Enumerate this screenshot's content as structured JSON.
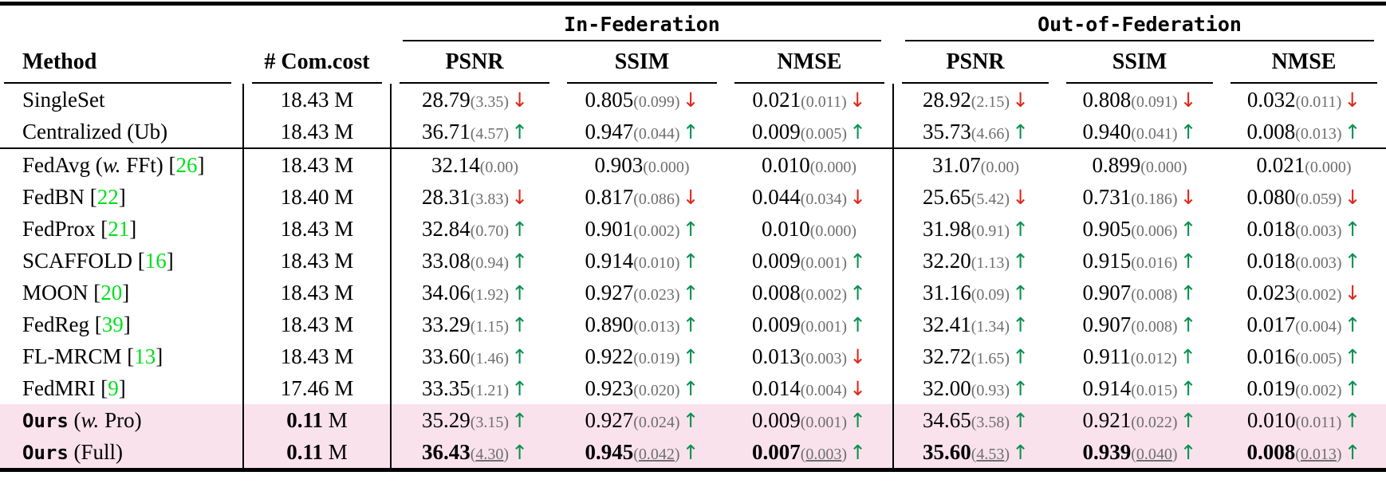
{
  "colors": {
    "highlight_row_pink": "#f9e2ec",
    "arrow_up_green": "#0a9150",
    "arrow_down_red": "#e0271b",
    "citation_green": "#00e01c",
    "std_gray": "#6e6e6e"
  },
  "header": {
    "groups": [
      {
        "label": "In-Federation"
      },
      {
        "label": "Out-of-Federation"
      }
    ],
    "columns": {
      "method": "Method",
      "comcost": "# Com.cost",
      "metrics": [
        "PSNR",
        "SSIM",
        "NMSE"
      ]
    }
  },
  "rows": [
    {
      "method_segments": [
        {
          "t": "SingleSet",
          "s": "n"
        }
      ],
      "comcost": {
        "value": "18.43",
        "unit": "M",
        "bold": false
      },
      "metrics": [
        {
          "v": "28.79",
          "sd": "3.35",
          "arrow": "down"
        },
        {
          "v": "0.805",
          "sd": "0.099",
          "arrow": "down"
        },
        {
          "v": "0.021",
          "sd": "0.011",
          "arrow": "down"
        },
        {
          "v": "28.92",
          "sd": "2.15",
          "arrow": "down"
        },
        {
          "v": "0.808",
          "sd": "0.091",
          "arrow": "down"
        },
        {
          "v": "0.032",
          "sd": "0.011",
          "arrow": "down"
        }
      ],
      "highlight": false,
      "emphasis": false,
      "separator_after": false
    },
    {
      "method_segments": [
        {
          "t": "Centralized (Ub)",
          "s": "n"
        }
      ],
      "comcost": {
        "value": "18.43",
        "unit": "M",
        "bold": false
      },
      "metrics": [
        {
          "v": "36.71",
          "sd": "4.57",
          "arrow": "up"
        },
        {
          "v": "0.947",
          "sd": "0.044",
          "arrow": "up"
        },
        {
          "v": "0.009",
          "sd": "0.005",
          "arrow": "up"
        },
        {
          "v": "35.73",
          "sd": "4.66",
          "arrow": "up"
        },
        {
          "v": "0.940",
          "sd": "0.041",
          "arrow": "up"
        },
        {
          "v": "0.008",
          "sd": "0.013",
          "arrow": "up"
        }
      ],
      "highlight": false,
      "emphasis": false,
      "separator_after": true
    },
    {
      "method_segments": [
        {
          "t": "FedAvg (",
          "s": "n"
        },
        {
          "t": "w.",
          "s": "i"
        },
        {
          "t": " FFt) [",
          "s": "n"
        },
        {
          "t": "26",
          "s": "c"
        },
        {
          "t": "]",
          "s": "n"
        }
      ],
      "comcost": {
        "value": "18.43",
        "unit": "M",
        "bold": false
      },
      "metrics": [
        {
          "v": "32.14",
          "sd": "0.00",
          "arrow": "none"
        },
        {
          "v": "0.903",
          "sd": "0.000",
          "arrow": "none"
        },
        {
          "v": "0.010",
          "sd": "0.000",
          "arrow": "none"
        },
        {
          "v": "31.07",
          "sd": "0.00",
          "arrow": "none"
        },
        {
          "v": "0.899",
          "sd": "0.000",
          "arrow": "none"
        },
        {
          "v": "0.021",
          "sd": "0.000",
          "arrow": "none"
        }
      ],
      "highlight": false,
      "emphasis": false,
      "separator_after": false
    },
    {
      "method_segments": [
        {
          "t": "FedBN [",
          "s": "n"
        },
        {
          "t": "22",
          "s": "c"
        },
        {
          "t": "]",
          "s": "n"
        }
      ],
      "comcost": {
        "value": "18.40",
        "unit": "M",
        "bold": false
      },
      "metrics": [
        {
          "v": "28.31",
          "sd": "3.83",
          "arrow": "down"
        },
        {
          "v": "0.817",
          "sd": "0.086",
          "arrow": "down"
        },
        {
          "v": "0.044",
          "sd": "0.034",
          "arrow": "down"
        },
        {
          "v": "25.65",
          "sd": "5.42",
          "arrow": "down"
        },
        {
          "v": "0.731",
          "sd": "0.186",
          "arrow": "down"
        },
        {
          "v": "0.080",
          "sd": "0.059",
          "arrow": "down"
        }
      ],
      "highlight": false,
      "emphasis": false,
      "separator_after": false
    },
    {
      "method_segments": [
        {
          "t": "FedProx [",
          "s": "n"
        },
        {
          "t": "21",
          "s": "c"
        },
        {
          "t": "]",
          "s": "n"
        }
      ],
      "comcost": {
        "value": "18.43",
        "unit": "M",
        "bold": false
      },
      "metrics": [
        {
          "v": "32.84",
          "sd": "0.70",
          "arrow": "up"
        },
        {
          "v": "0.901",
          "sd": "0.002",
          "arrow": "up"
        },
        {
          "v": "0.010",
          "sd": "0.000",
          "arrow": "none"
        },
        {
          "v": "31.98",
          "sd": "0.91",
          "arrow": "up"
        },
        {
          "v": "0.905",
          "sd": "0.006",
          "arrow": "up"
        },
        {
          "v": "0.018",
          "sd": "0.003",
          "arrow": "up"
        }
      ],
      "highlight": false,
      "emphasis": false,
      "separator_after": false
    },
    {
      "method_segments": [
        {
          "t": "SCAFFOLD [",
          "s": "n"
        },
        {
          "t": "16",
          "s": "c"
        },
        {
          "t": "]",
          "s": "n"
        }
      ],
      "comcost": {
        "value": "18.43",
        "unit": "M",
        "bold": false
      },
      "metrics": [
        {
          "v": "33.08",
          "sd": "0.94",
          "arrow": "up"
        },
        {
          "v": "0.914",
          "sd": "0.010",
          "arrow": "up"
        },
        {
          "v": "0.009",
          "sd": "0.001",
          "arrow": "up"
        },
        {
          "v": "32.20",
          "sd": "1.13",
          "arrow": "up"
        },
        {
          "v": "0.915",
          "sd": "0.016",
          "arrow": "up"
        },
        {
          "v": "0.018",
          "sd": "0.003",
          "arrow": "up"
        }
      ],
      "highlight": false,
      "emphasis": false,
      "separator_after": false
    },
    {
      "method_segments": [
        {
          "t": "MOON [",
          "s": "n"
        },
        {
          "t": "20",
          "s": "c"
        },
        {
          "t": "]",
          "s": "n"
        }
      ],
      "comcost": {
        "value": "18.43",
        "unit": "M",
        "bold": false
      },
      "metrics": [
        {
          "v": "34.06",
          "sd": "1.92",
          "arrow": "up"
        },
        {
          "v": "0.927",
          "sd": "0.023",
          "arrow": "up"
        },
        {
          "v": "0.008",
          "sd": "0.002",
          "arrow": "up"
        },
        {
          "v": "31.16",
          "sd": "0.09",
          "arrow": "up"
        },
        {
          "v": "0.907",
          "sd": "0.008",
          "arrow": "up"
        },
        {
          "v": "0.023",
          "sd": "0.002",
          "arrow": "down"
        }
      ],
      "highlight": false,
      "emphasis": false,
      "separator_after": false
    },
    {
      "method_segments": [
        {
          "t": "FedReg [",
          "s": "n"
        },
        {
          "t": "39",
          "s": "c"
        },
        {
          "t": "]",
          "s": "n"
        }
      ],
      "comcost": {
        "value": "18.43",
        "unit": "M",
        "bold": false
      },
      "metrics": [
        {
          "v": "33.29",
          "sd": "1.15",
          "arrow": "up"
        },
        {
          "v": "0.890",
          "sd": "0.013",
          "arrow": "up"
        },
        {
          "v": "0.009",
          "sd": "0.001",
          "arrow": "up"
        },
        {
          "v": "32.41",
          "sd": "1.34",
          "arrow": "up"
        },
        {
          "v": "0.907",
          "sd": "0.008",
          "arrow": "up"
        },
        {
          "v": "0.017",
          "sd": "0.004",
          "arrow": "up"
        }
      ],
      "highlight": false,
      "emphasis": false,
      "separator_after": false
    },
    {
      "method_segments": [
        {
          "t": "FL-MRCM [",
          "s": "n"
        },
        {
          "t": "13",
          "s": "c"
        },
        {
          "t": "]",
          "s": "n"
        }
      ],
      "comcost": {
        "value": "18.43",
        "unit": "M",
        "bold": false
      },
      "metrics": [
        {
          "v": "33.60",
          "sd": "1.46",
          "arrow": "up"
        },
        {
          "v": "0.922",
          "sd": "0.019",
          "arrow": "up"
        },
        {
          "v": "0.013",
          "sd": "0.003",
          "arrow": "down"
        },
        {
          "v": "32.72",
          "sd": "1.65",
          "arrow": "up"
        },
        {
          "v": "0.911",
          "sd": "0.012",
          "arrow": "up"
        },
        {
          "v": "0.016",
          "sd": "0.005",
          "arrow": "up"
        }
      ],
      "highlight": false,
      "emphasis": false,
      "separator_after": false
    },
    {
      "method_segments": [
        {
          "t": "FedMRI [",
          "s": "n"
        },
        {
          "t": "9",
          "s": "c"
        },
        {
          "t": "]",
          "s": "n"
        }
      ],
      "comcost": {
        "value": "17.46",
        "unit": "M",
        "bold": false
      },
      "metrics": [
        {
          "v": "33.35",
          "sd": "1.21",
          "arrow": "up"
        },
        {
          "v": "0.923",
          "sd": "0.020",
          "arrow": "up"
        },
        {
          "v": "0.014",
          "sd": "0.004",
          "arrow": "down"
        },
        {
          "v": "32.00",
          "sd": "0.93",
          "arrow": "up"
        },
        {
          "v": "0.914",
          "sd": "0.015",
          "arrow": "up"
        },
        {
          "v": "0.019",
          "sd": "0.002",
          "arrow": "up"
        }
      ],
      "highlight": false,
      "emphasis": false,
      "separator_after": false
    },
    {
      "method_segments": [
        {
          "t": "Ours",
          "s": "m"
        },
        {
          "t": " (",
          "s": "n"
        },
        {
          "t": "w.",
          "s": "i"
        },
        {
          "t": " Pro)",
          "s": "n"
        }
      ],
      "comcost": {
        "value": "0.11",
        "unit": "M",
        "bold": true
      },
      "metrics": [
        {
          "v": "35.29",
          "sd": "3.15",
          "arrow": "up"
        },
        {
          "v": "0.927",
          "sd": "0.024",
          "arrow": "up"
        },
        {
          "v": "0.009",
          "sd": "0.001",
          "arrow": "up"
        },
        {
          "v": "34.65",
          "sd": "3.58",
          "arrow": "up"
        },
        {
          "v": "0.921",
          "sd": "0.022",
          "arrow": "up"
        },
        {
          "v": "0.010",
          "sd": "0.011",
          "arrow": "up"
        }
      ],
      "highlight": true,
      "emphasis": false,
      "separator_after": false
    },
    {
      "method_segments": [
        {
          "t": "Ours",
          "s": "m"
        },
        {
          "t": " (Full)",
          "s": "n"
        }
      ],
      "comcost": {
        "value": "0.11",
        "unit": "M",
        "bold": true
      },
      "metrics": [
        {
          "v": "36.43",
          "sd": "4.30",
          "arrow": "up"
        },
        {
          "v": "0.945",
          "sd": "0.042",
          "arrow": "up"
        },
        {
          "v": "0.007",
          "sd": "0.003",
          "arrow": "up"
        },
        {
          "v": "35.60",
          "sd": "4.53",
          "arrow": "up"
        },
        {
          "v": "0.939",
          "sd": "0.040",
          "arrow": "up"
        },
        {
          "v": "0.008",
          "sd": "0.013",
          "arrow": "up"
        }
      ],
      "highlight": true,
      "emphasis": true,
      "separator_after": false
    }
  ]
}
